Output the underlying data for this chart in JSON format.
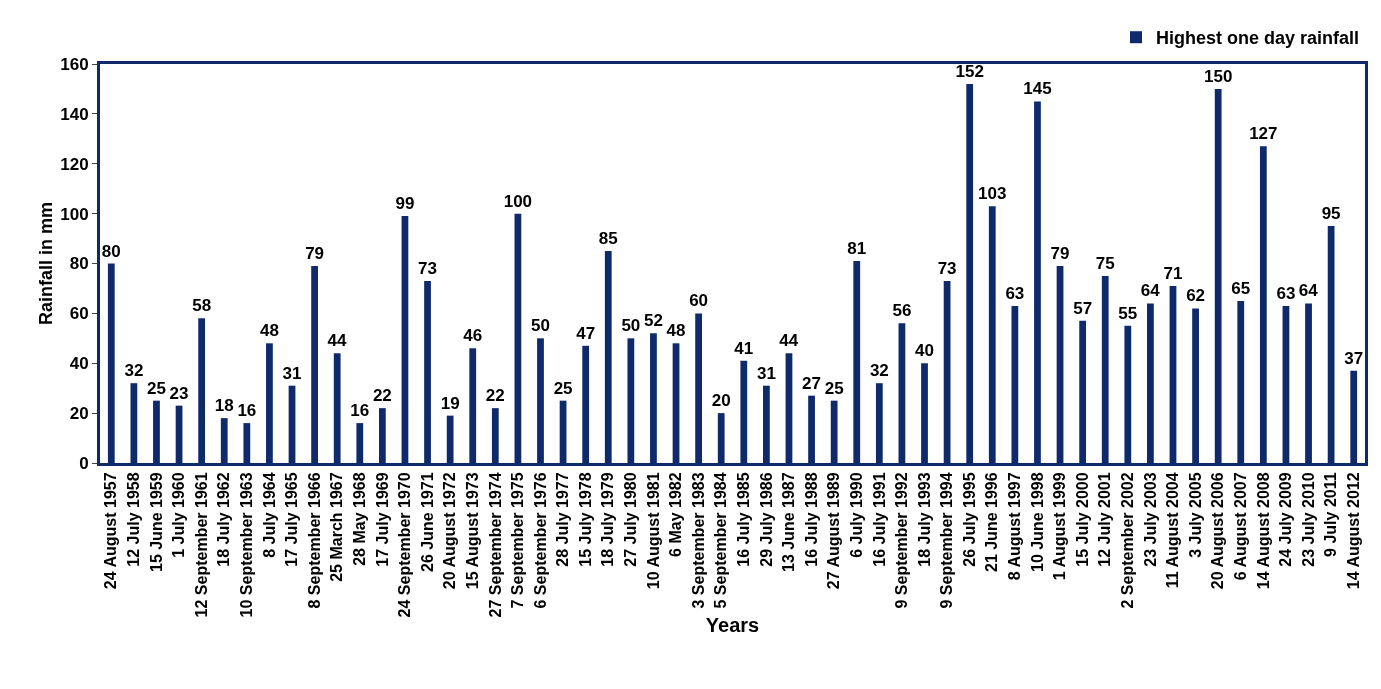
{
  "chart_data": {
    "type": "bar",
    "xlabel": "Years",
    "ylabel": "Rainfall in mm",
    "categories": [
      "24 August 1957",
      "12 July 1958",
      "15 June 1959",
      "1 July 1960",
      "12 September 1961",
      "18 July 1962",
      "10 September 1963",
      "8 July 1964",
      "17 July 1965",
      "8 September 1966",
      "25 March 1967",
      "28 May 1968",
      "17 July 1969",
      "24 September 1970",
      "26 June 1971",
      "20 August 1972",
      "15 August 1973",
      "27 September 1974",
      "7 September 1975",
      "6 September 1976",
      "28 July 1977",
      "15 July 1978",
      "18 July 1979",
      "27 July 1980",
      "10 August 1981",
      "6 May 1982",
      "3 September 1983",
      "5 September 1984",
      "16 July 1985",
      "29 July 1986",
      "13 June 1987",
      "16 July 1988",
      "27 August 1989",
      "6 July 1990",
      "16 July 1991",
      "9 September 1992",
      "18 July 1993",
      "9 September 1994",
      "26 July 1995",
      "21 June 1996",
      "8 August 1997",
      "10 June 1998",
      "1 August 1999",
      "15 July 2000",
      "12 July 2001",
      "2 September 2002",
      "23 July 2003",
      "11 August 2004",
      "3 July 2005",
      "20 August 2006",
      "6 August 2007",
      "14 August 2008",
      "24 July 2009",
      "23 July 2010",
      "9 July 2011",
      "14 August 2012"
    ],
    "series": [
      {
        "name": "Highest one day rainfall",
        "color": "#0f2a6b",
        "values": [
          80,
          32,
          25,
          23,
          58,
          18,
          16,
          48,
          31,
          79,
          44,
          16,
          22,
          99,
          73,
          19,
          46,
          22,
          100,
          50,
          25,
          47,
          85,
          50,
          52,
          48,
          60,
          20,
          41,
          31,
          44,
          27,
          25,
          81,
          32,
          56,
          40,
          73,
          152,
          103,
          63,
          145,
          79,
          57,
          75,
          55,
          64,
          71,
          62,
          150,
          65,
          127,
          63,
          64,
          95,
          37
        ]
      }
    ],
    "ylim": [
      0,
      160
    ],
    "yticks": [
      0,
      20,
      40,
      60,
      80,
      100,
      120,
      140,
      160
    ],
    "grid": false,
    "legend": "top right",
    "data_labels": true
  }
}
